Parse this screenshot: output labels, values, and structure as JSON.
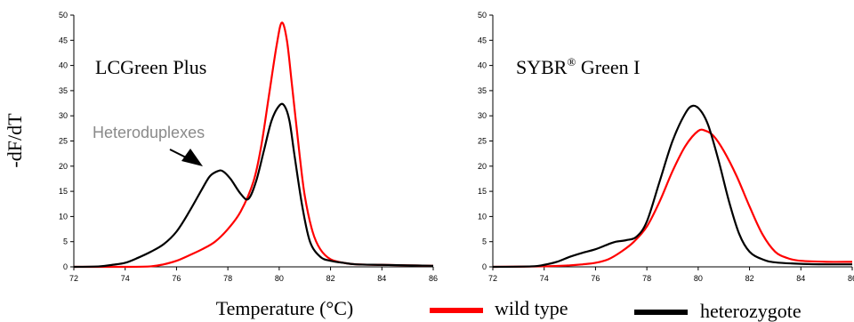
{
  "ylabel": "-dF/dT",
  "xlabel": "Temperature (°C)",
  "legend": [
    {
      "label": "wild type",
      "color": "#ff0000"
    },
    {
      "label": "heterozygote",
      "color": "#000000"
    }
  ],
  "chart_data": [
    {
      "type": "line",
      "title": "LCGreen Plus",
      "annotation": "Heteroduplexes",
      "xlim": [
        72,
        86
      ],
      "ylim": [
        0,
        50
      ],
      "xticks": [
        72,
        74,
        76,
        78,
        80,
        82,
        84,
        86
      ],
      "yticks": [
        0,
        5,
        10,
        15,
        20,
        25,
        30,
        35,
        40,
        45,
        50
      ],
      "grid": false,
      "series": [
        {
          "name": "wild type",
          "color": "#ff0000",
          "x": [
            72,
            74,
            75,
            75.5,
            76,
            76.5,
            77,
            77.5,
            78,
            78.5,
            79,
            79.3,
            79.6,
            79.9,
            80.1,
            80.3,
            80.5,
            80.8,
            81,
            81.3,
            81.6,
            82,
            82.5,
            83,
            84,
            85,
            86
          ],
          "y": [
            0,
            0,
            0.1,
            0.5,
            1.2,
            2.3,
            3.5,
            5,
            7.5,
            11,
            17,
            24,
            34,
            44,
            48.5,
            45,
            36,
            22,
            14,
            7,
            3.5,
            1.5,
            0.8,
            0.5,
            0.4,
            0.3,
            0.2
          ]
        },
        {
          "name": "heterozygote",
          "color": "#000000",
          "x": [
            72,
            73,
            73.5,
            74,
            74.5,
            75,
            75.5,
            76,
            76.5,
            77,
            77.3,
            77.6,
            77.8,
            78.1,
            78.5,
            78.8,
            79.1,
            79.4,
            79.7,
            80,
            80.2,
            80.4,
            80.6,
            80.9,
            81.2,
            81.6,
            82,
            82.5,
            83,
            84,
            85,
            86
          ],
          "y": [
            0,
            0.1,
            0.4,
            0.8,
            1.8,
            3,
            4.5,
            7,
            11,
            15.5,
            18,
            19,
            19,
            17.5,
            14.5,
            13.5,
            17,
            23,
            29,
            32,
            32,
            29,
            22,
            12,
            5,
            2,
            1.2,
            0.8,
            0.5,
            0.4,
            0.3,
            0.2
          ]
        }
      ]
    },
    {
      "type": "line",
      "title": "SYBR",
      "title_sup": "®",
      "title_rest": " Green I",
      "xlim": [
        72,
        86
      ],
      "ylim": [
        0,
        50
      ],
      "xticks": [
        72,
        74,
        76,
        78,
        80,
        82,
        84,
        86
      ],
      "yticks": [
        0,
        5,
        10,
        15,
        20,
        25,
        30,
        35,
        40,
        45,
        50
      ],
      "grid": false,
      "series": [
        {
          "name": "wild type",
          "color": "#ff0000",
          "x": [
            72,
            74,
            75,
            75.5,
            76,
            76.5,
            77,
            77.5,
            78,
            78.5,
            79,
            79.5,
            80,
            80.3,
            80.6,
            81,
            81.5,
            82,
            82.5,
            83,
            83.5,
            84,
            85,
            86
          ],
          "y": [
            0,
            0.1,
            0.3,
            0.5,
            0.8,
            1.5,
            3,
            5,
            8,
            13,
            19,
            24,
            27,
            27,
            26,
            23,
            18,
            12,
            6.5,
            3,
            1.7,
            1.2,
            1,
            1
          ]
        },
        {
          "name": "heterozygote",
          "color": "#000000",
          "x": [
            72,
            73.5,
            74,
            74.5,
            75,
            75.5,
            76,
            76.5,
            76.8,
            77.2,
            77.6,
            78,
            78.5,
            79,
            79.5,
            79.8,
            80.1,
            80.4,
            80.8,
            81.2,
            81.6,
            82,
            82.5,
            83,
            84,
            85,
            86
          ],
          "y": [
            0,
            0.1,
            0.4,
            1,
            2,
            2.8,
            3.5,
            4.5,
            5,
            5.3,
            6,
            9,
            17,
            25,
            30.5,
            32,
            31,
            28,
            21,
            13,
            6.5,
            3,
            1.5,
            0.9,
            0.6,
            0.5,
            0.5
          ]
        }
      ]
    }
  ]
}
